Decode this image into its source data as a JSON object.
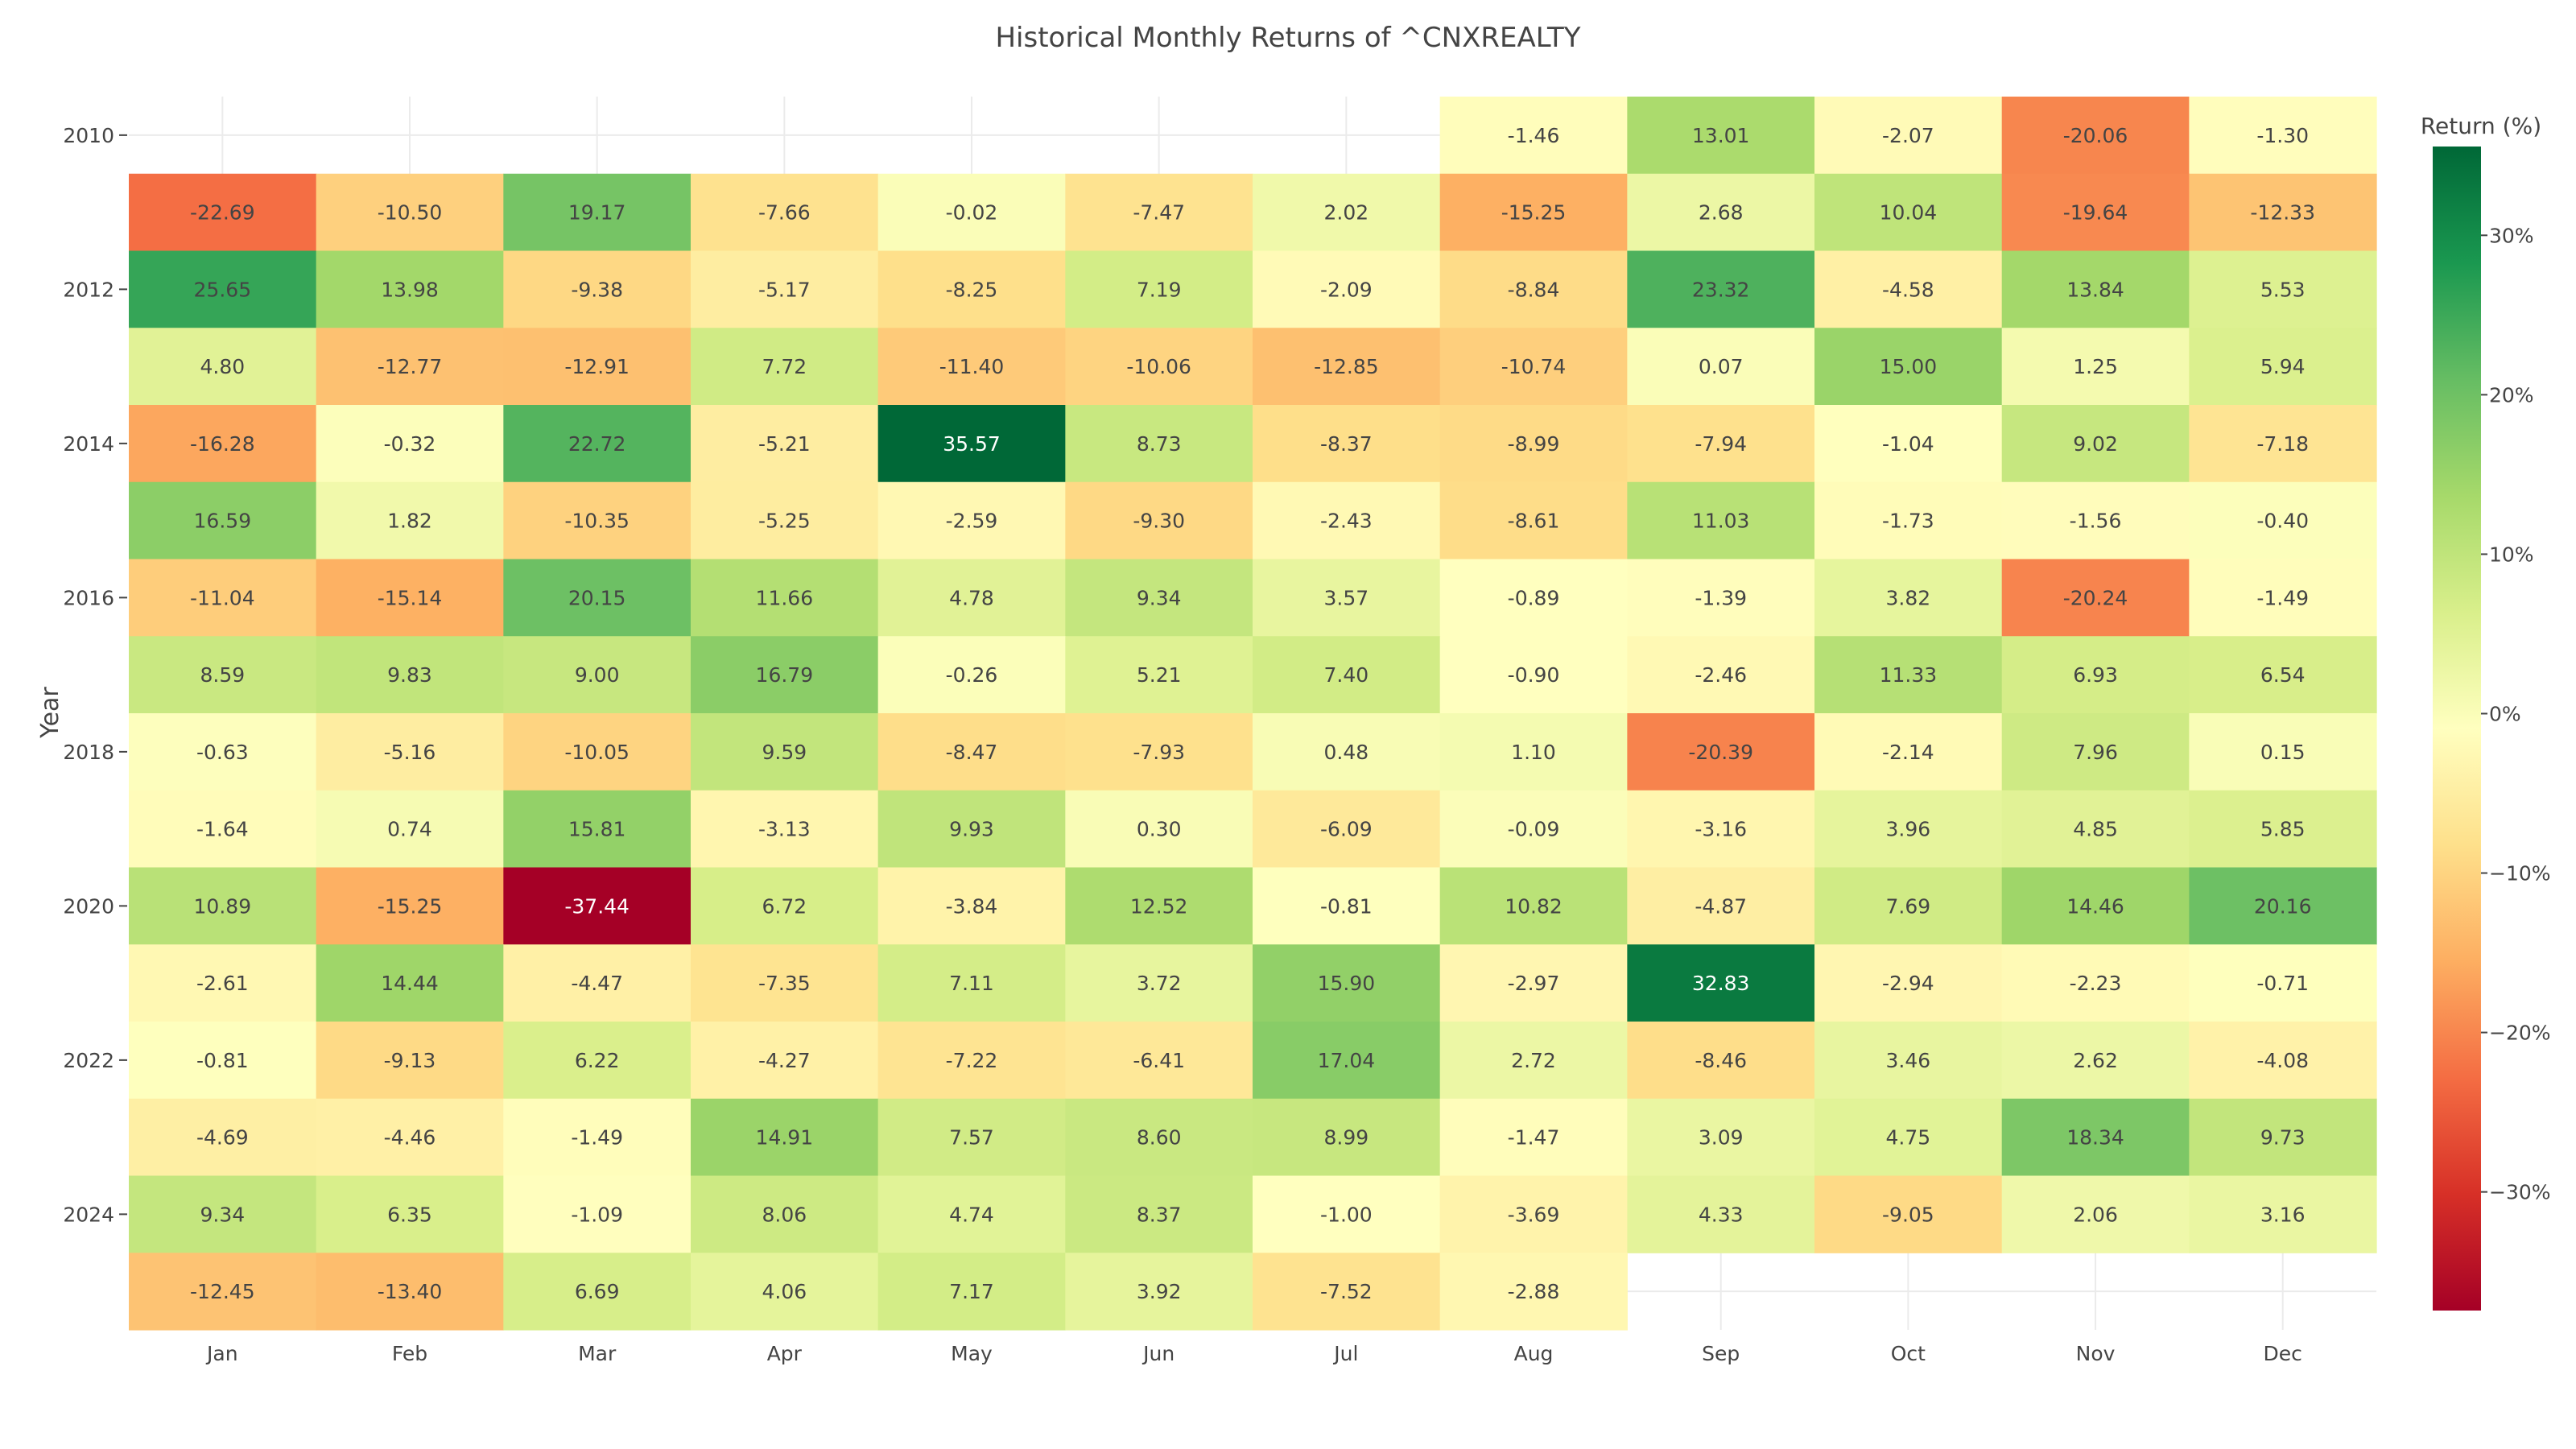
{
  "chart_data": {
    "type": "heatmap",
    "title": "Historical Monthly Returns of ^CNXREALTY",
    "xlabel": "",
    "ylabel": "Year",
    "x": [
      "Jan",
      "Feb",
      "Mar",
      "Apr",
      "May",
      "Jun",
      "Jul",
      "Aug",
      "Sep",
      "Oct",
      "Nov",
      "Dec"
    ],
    "y": [
      2010,
      2011,
      2012,
      2013,
      2014,
      2015,
      2016,
      2017,
      2018,
      2019,
      2020,
      2021,
      2022,
      2023,
      2024,
      2025
    ],
    "y_tick_labels": [
      "2010",
      "2012",
      "2014",
      "2016",
      "2018",
      "2020",
      "2022",
      "2024"
    ],
    "values": [
      [
        null,
        null,
        null,
        null,
        null,
        null,
        null,
        -1.46,
        13.01,
        -2.07,
        -20.06,
        -1.3
      ],
      [
        -22.69,
        -10.5,
        19.17,
        -7.66,
        -0.02,
        -7.47,
        2.02,
        -15.25,
        2.68,
        10.04,
        -19.64,
        -12.33
      ],
      [
        25.65,
        13.98,
        -9.38,
        -5.17,
        -8.25,
        7.19,
        -2.09,
        -8.84,
        23.32,
        -4.58,
        13.84,
        5.53
      ],
      [
        4.8,
        -12.77,
        -12.91,
        7.72,
        -11.4,
        -10.06,
        -12.85,
        -10.74,
        0.07,
        15.0,
        1.25,
        5.94
      ],
      [
        -16.28,
        -0.32,
        22.72,
        -5.21,
        35.57,
        8.73,
        -8.37,
        -8.99,
        -7.94,
        -1.04,
        9.02,
        -7.18
      ],
      [
        16.59,
        1.82,
        -10.35,
        -5.25,
        -2.59,
        -9.3,
        -2.43,
        -8.61,
        11.03,
        -1.73,
        -1.56,
        -0.4
      ],
      [
        -11.04,
        -15.14,
        20.15,
        11.66,
        4.78,
        9.34,
        3.57,
        -0.89,
        -1.39,
        3.82,
        -20.24,
        -1.49
      ],
      [
        8.59,
        9.83,
        9.0,
        16.79,
        -0.26,
        5.21,
        7.4,
        -0.9,
        -2.46,
        11.33,
        6.93,
        6.54
      ],
      [
        -0.63,
        -5.16,
        -10.05,
        9.59,
        -8.47,
        -7.93,
        0.48,
        1.1,
        -20.39,
        -2.14,
        7.96,
        0.15
      ],
      [
        -1.64,
        0.74,
        15.81,
        -3.13,
        9.93,
        0.3,
        -6.09,
        -0.09,
        -3.16,
        3.96,
        4.85,
        5.85
      ],
      [
        10.89,
        -15.25,
        -37.44,
        6.72,
        -3.84,
        12.52,
        -0.81,
        10.82,
        -4.87,
        7.69,
        14.46,
        20.16
      ],
      [
        -2.61,
        14.44,
        -4.47,
        -7.35,
        7.11,
        3.72,
        15.9,
        -2.97,
        32.83,
        -2.94,
        -2.23,
        -0.71
      ],
      [
        -0.81,
        -9.13,
        6.22,
        -4.27,
        -7.22,
        -6.41,
        17.04,
        2.72,
        -8.46,
        3.46,
        2.62,
        -4.08
      ],
      [
        -4.69,
        -4.46,
        -1.49,
        14.91,
        7.57,
        8.6,
        8.99,
        -1.47,
        3.09,
        4.75,
        18.34,
        9.73
      ],
      [
        9.34,
        6.35,
        -1.09,
        8.06,
        4.74,
        8.37,
        -1.0,
        -3.69,
        4.33,
        -9.05,
        2.06,
        3.16
      ],
      [
        -12.45,
        -13.4,
        6.69,
        4.06,
        7.17,
        3.92,
        -7.52,
        -2.88,
        null,
        null,
        null,
        null
      ]
    ],
    "colorscale": "RdYlGn",
    "zmin": -37.44,
    "zmax": 35.57,
    "colorbar": {
      "title": "Return (%)",
      "ticks": [
        -30,
        -20,
        -10,
        0,
        10,
        20,
        30
      ],
      "tick_labels": [
        "−30%",
        "−20%",
        "−10%",
        "0%",
        "10%",
        "20%",
        "30%"
      ]
    },
    "grid": true,
    "legend": "colorbar-right"
  }
}
